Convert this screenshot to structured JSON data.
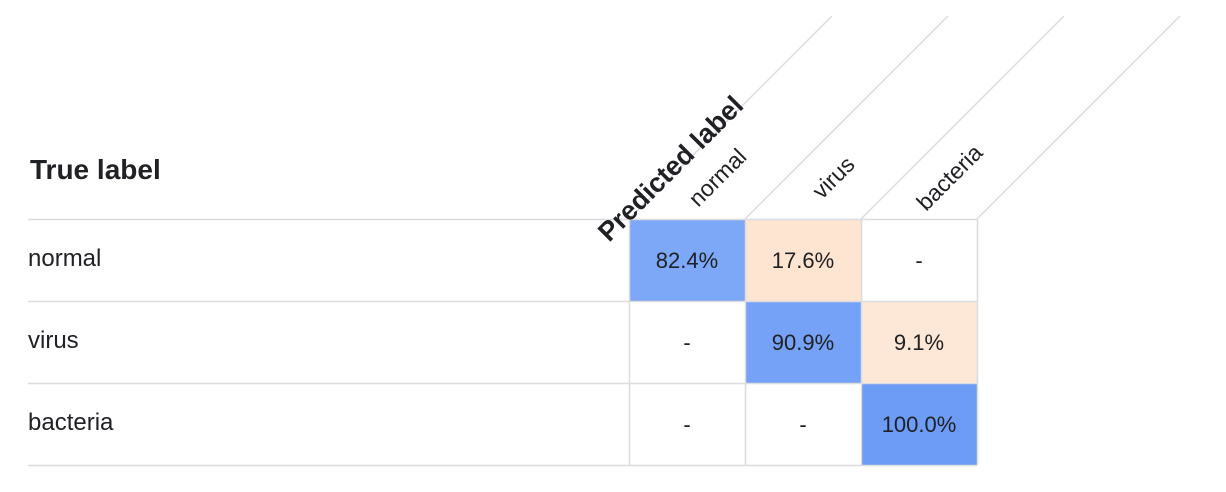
{
  "chart_data": {
    "type": "heatmap",
    "title": "",
    "row_axis_label": "True label",
    "column_axis_label": "Predicted label",
    "rows": [
      "normal",
      "virus",
      "bacteria"
    ],
    "columns": [
      "normal",
      "virus",
      "bacteria"
    ],
    "cells": [
      [
        "82.4%",
        "17.6%",
        "-"
      ],
      [
        "-",
        "90.9%",
        "9.1%"
      ],
      [
        "-",
        "-",
        "100.0%"
      ]
    ],
    "values": [
      [
        82.4,
        17.6,
        null
      ],
      [
        null,
        90.9,
        9.1
      ],
      [
        null,
        null,
        100.0
      ]
    ],
    "diagonal_color": "#6c9cf6",
    "off_diagonal_color": "#fbc79d",
    "empty_color": "#ffffff",
    "grid_color": "#dadce0"
  }
}
